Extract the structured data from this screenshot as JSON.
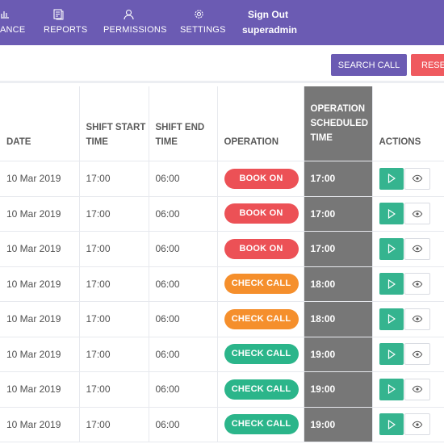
{
  "nav": {
    "items": [
      {
        "label": "ANCE",
        "icon": "bar-chart-icon"
      },
      {
        "label": "REPORTS",
        "icon": "document-icon"
      },
      {
        "label": "PERMISSIONS",
        "icon": "user-icon"
      },
      {
        "label": "SETTINGS",
        "icon": "gear-icon"
      }
    ],
    "signout_label": "Sign Out",
    "username": "superadmin"
  },
  "toolbar": {
    "search_label": "SEARCH CALL",
    "reset_label": "RESET"
  },
  "table": {
    "headers": {
      "date": "DATE",
      "shift_start": "SHIFT START TIME",
      "shift_end": "SHIFT END TIME",
      "operation": "OPERATION",
      "op_time": "OPERATION SCHEDULED TIME",
      "actions": "ACTIONS"
    },
    "rows": [
      {
        "date": "10 Mar 2019",
        "start": "17:00",
        "end": "06:00",
        "operation": "BOOK ON",
        "op_type": "book",
        "op_time": "17:00"
      },
      {
        "date": "10 Mar 2019",
        "start": "17:00",
        "end": "06:00",
        "operation": "BOOK ON",
        "op_type": "book",
        "op_time": "17:00"
      },
      {
        "date": "10 Mar 2019",
        "start": "17:00",
        "end": "06:00",
        "operation": "BOOK ON",
        "op_type": "book",
        "op_time": "17:00"
      },
      {
        "date": "10 Mar 2019",
        "start": "17:00",
        "end": "06:00",
        "operation": "CHECK CALL",
        "op_type": "check-orange",
        "op_time": "18:00"
      },
      {
        "date": "10 Mar 2019",
        "start": "17:00",
        "end": "06:00",
        "operation": "CHECK CALL",
        "op_type": "check-orange",
        "op_time": "18:00"
      },
      {
        "date": "10 Mar 2019",
        "start": "17:00",
        "end": "06:00",
        "operation": "CHECK CALL",
        "op_type": "check-green",
        "op_time": "19:00"
      },
      {
        "date": "10 Mar 2019",
        "start": "17:00",
        "end": "06:00",
        "operation": "CHECK CALL",
        "op_type": "check-green",
        "op_time": "19:00"
      },
      {
        "date": "10 Mar 2019",
        "start": "17:00",
        "end": "06:00",
        "operation": "CHECK CALL",
        "op_type": "check-green",
        "op_time": "19:00"
      }
    ]
  },
  "colors": {
    "nav_bg": "#6b5bb3",
    "search_button": "#6b5bb3",
    "reset_button": "#ef5a5f",
    "book_on": "#ec5156",
    "check_call_orange": "#f58f2c",
    "check_call_green": "#2bb58a",
    "scheduled_time_column": "#777777",
    "play_button": "#35b48f"
  }
}
